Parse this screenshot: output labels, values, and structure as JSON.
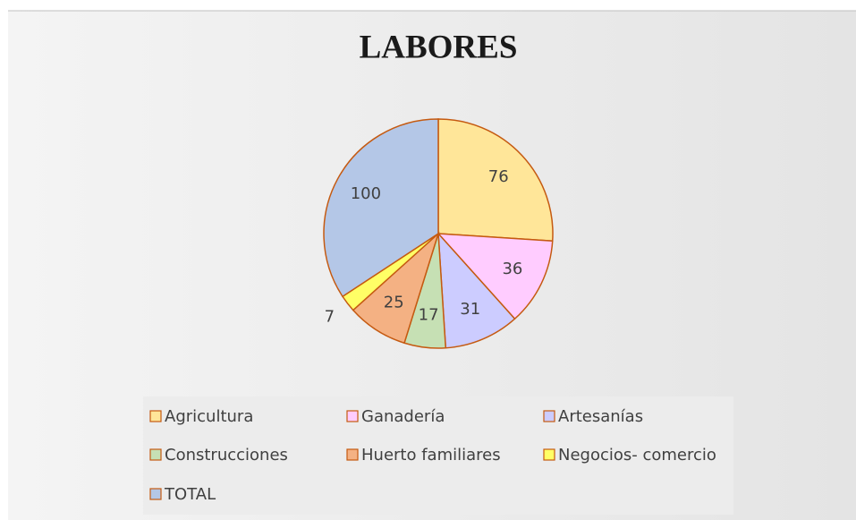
{
  "chart_data": {
    "type": "pie",
    "title": "LABORES",
    "categories": [
      "Agricultura",
      "Ganadería",
      "Artesanías",
      "Construcciones",
      "Huerto familiares",
      "Negocios- comercio",
      "TOTAL"
    ],
    "values": [
      76,
      36,
      31,
      17,
      25,
      7,
      100
    ],
    "colors": [
      "#ffe699",
      "#ffccff",
      "#ccccff",
      "#c6e0b4",
      "#f4b183",
      "#ffff66",
      "#b4c7e7"
    ],
    "legend": "bottom"
  }
}
